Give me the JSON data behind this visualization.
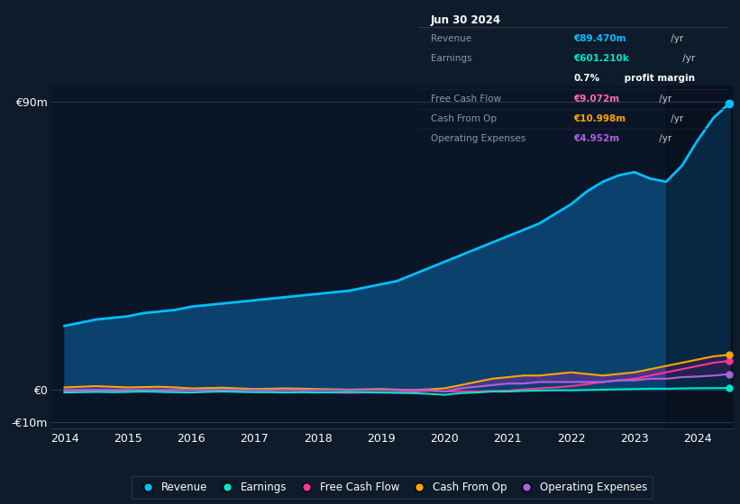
{
  "background_color": "#0d1b2a",
  "plot_bg_color": "#0a1628",
  "grid_color": "#253a52",
  "text_color": "#ffffff",
  "dim_text_color": "#8899aa",
  "title_box": {
    "date": "Jun 30 2024",
    "rows": [
      {
        "label": "Revenue",
        "value": "€89.470m",
        "suffix": " /yr",
        "value_color": "#00bfff"
      },
      {
        "label": "Earnings",
        "value": "€601.210k",
        "suffix": " /yr",
        "value_color": "#00e5cc"
      },
      {
        "label": "",
        "value": "0.7%",
        "suffix": " profit margin",
        "value_color": "#ffffff",
        "suffix_bold": true
      },
      {
        "label": "Free Cash Flow",
        "value": "€9.072m",
        "suffix": " /yr",
        "value_color": "#ff69b4"
      },
      {
        "label": "Cash From Op",
        "value": "€10.998m",
        "suffix": " /yr",
        "value_color": "#ffa500"
      },
      {
        "label": "Operating Expenses",
        "value": "€4.952m",
        "suffix": " /yr",
        "value_color": "#b060e0"
      }
    ]
  },
  "years": [
    2014.0,
    2014.25,
    2014.5,
    2014.75,
    2015.0,
    2015.25,
    2015.5,
    2015.75,
    2016.0,
    2016.25,
    2016.5,
    2016.75,
    2017.0,
    2017.25,
    2017.5,
    2017.75,
    2018.0,
    2018.25,
    2018.5,
    2018.75,
    2019.0,
    2019.25,
    2019.5,
    2019.75,
    2020.0,
    2020.25,
    2020.5,
    2020.75,
    2021.0,
    2021.25,
    2021.5,
    2021.75,
    2022.0,
    2022.25,
    2022.5,
    2022.75,
    2023.0,
    2023.25,
    2023.5,
    2023.75,
    2024.0,
    2024.25,
    2024.5
  ],
  "revenue": [
    20,
    21,
    22,
    22.5,
    23,
    24,
    24.5,
    25,
    26,
    26.5,
    27,
    27.5,
    28,
    28.5,
    29,
    29.5,
    30,
    30.5,
    31,
    32,
    33,
    34,
    36,
    38,
    40,
    42,
    44,
    46,
    48,
    50,
    52,
    55,
    58,
    62,
    65,
    67,
    68,
    66,
    65,
    70,
    78,
    85,
    89.47
  ],
  "earnings": [
    -0.8,
    -0.7,
    -0.6,
    -0.7,
    -0.6,
    -0.5,
    -0.6,
    -0.7,
    -0.8,
    -0.6,
    -0.5,
    -0.6,
    -0.7,
    -0.7,
    -0.8,
    -0.7,
    -0.8,
    -0.7,
    -0.6,
    -0.7,
    -0.8,
    -0.9,
    -1.0,
    -1.2,
    -1.5,
    -1.0,
    -0.8,
    -0.5,
    -0.5,
    -0.3,
    -0.2,
    -0.1,
    -0.1,
    0.0,
    0.1,
    0.2,
    0.3,
    0.4,
    0.4,
    0.5,
    0.55,
    0.58,
    0.601
  ],
  "fcf": [
    -0.5,
    -0.4,
    -0.3,
    -0.5,
    -0.5,
    -0.4,
    -0.5,
    -0.6,
    -0.7,
    -0.5,
    -0.4,
    -0.5,
    -0.6,
    -0.6,
    -0.7,
    -0.6,
    -0.7,
    -0.8,
    -0.9,
    -0.8,
    -0.8,
    -0.7,
    -0.5,
    -0.3,
    -0.5,
    -0.4,
    -0.5,
    -0.3,
    -0.2,
    0.2,
    0.5,
    0.8,
    1.2,
    1.8,
    2.5,
    3.0,
    3.5,
    4.5,
    5.5,
    6.5,
    7.5,
    8.5,
    9.072
  ],
  "cashfromop": [
    0.8,
    1.0,
    1.2,
    1.0,
    0.8,
    0.9,
    1.0,
    0.8,
    0.5,
    0.6,
    0.7,
    0.5,
    0.3,
    0.4,
    0.5,
    0.4,
    0.3,
    0.2,
    0.1,
    0.2,
    0.3,
    0.1,
    0.0,
    0.2,
    0.5,
    1.5,
    2.5,
    3.5,
    4.0,
    4.5,
    4.5,
    5.0,
    5.5,
    5.0,
    4.5,
    5.0,
    5.5,
    6.5,
    7.5,
    8.5,
    9.5,
    10.5,
    10.998
  ],
  "opex": [
    0.0,
    0.0,
    0.0,
    0.0,
    0.0,
    0.0,
    0.0,
    0.0,
    0.0,
    0.0,
    0.0,
    0.0,
    0.0,
    0.0,
    0.0,
    0.0,
    0.0,
    0.0,
    0.0,
    0.0,
    0.0,
    0.0,
    0.0,
    0.0,
    -0.5,
    0.5,
    1.0,
    1.5,
    2.0,
    2.0,
    2.5,
    2.5,
    2.5,
    2.5,
    2.5,
    3.0,
    3.0,
    3.5,
    3.5,
    4.0,
    4.2,
    4.5,
    4.952
  ],
  "revenue_color": "#00bfff",
  "earnings_color": "#00e5cc",
  "fcf_color": "#ff3399",
  "cashfromop_color": "#ffa500",
  "opex_color": "#b060e0",
  "ylim": [
    -12,
    95
  ],
  "yticks": [
    -10,
    0,
    90
  ],
  "ytick_labels": [
    "-€10m",
    "€0",
    "€90m"
  ],
  "xtick_years": [
    2014,
    2015,
    2016,
    2017,
    2018,
    2019,
    2020,
    2021,
    2022,
    2023,
    2024
  ],
  "legend_items": [
    {
      "label": "Revenue",
      "color": "#00bfff"
    },
    {
      "label": "Earnings",
      "color": "#00e5cc"
    },
    {
      "label": "Free Cash Flow",
      "color": "#ff3399"
    },
    {
      "label": "Cash From Op",
      "color": "#ffa500"
    },
    {
      "label": "Operating Expenses",
      "color": "#b060e0"
    }
  ],
  "xlim": [
    2013.8,
    2024.55
  ]
}
